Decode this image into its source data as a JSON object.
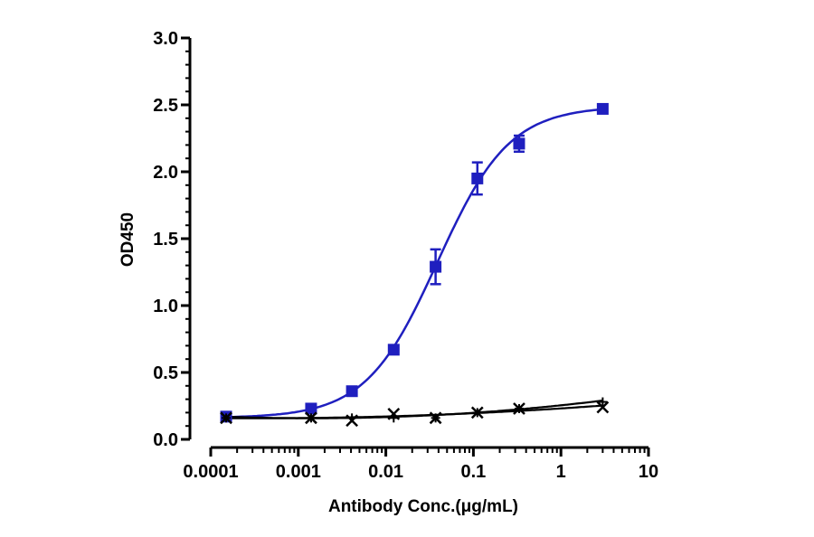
{
  "chart_data": {
    "type": "scatter",
    "title": "",
    "xlabel": "Antibody Conc.(μg/mL)",
    "ylabel": "OD450",
    "xscale": "log",
    "xlim": [
      0.0001,
      10
    ],
    "ylim": [
      0,
      3
    ],
    "xticks": [
      0.0001,
      0.001,
      0.01,
      0.1,
      1,
      10
    ],
    "xtick_labels": [
      "0.0001",
      "0.001",
      "0.01",
      "0.1",
      "1",
      "10"
    ],
    "yticks": [
      0,
      0.5,
      1.0,
      1.5,
      2.0,
      2.5,
      3.0
    ],
    "ytick_labels": [
      "0.0",
      "0.5",
      "1.0",
      "1.5",
      "2.0",
      "2.5",
      "3.0"
    ],
    "grid": false,
    "legend": "none",
    "series": [
      {
        "marker": "square",
        "color": "#1f1fbf",
        "fit": "4PL",
        "x": [
          0.00015,
          0.0014,
          0.0041,
          0.0123,
          0.037,
          0.111,
          0.333,
          3.0
        ],
        "y": [
          0.17,
          0.23,
          0.36,
          0.67,
          1.29,
          1.95,
          2.21,
          2.47
        ],
        "error": [
          0.02,
          0.02,
          0.02,
          0.03,
          0.13,
          0.12,
          0.06,
          0.03
        ]
      },
      {
        "marker": "cross",
        "color": "#000000",
        "fit": "line",
        "x": [
          0.00015,
          0.0014,
          0.0041,
          0.0123,
          0.037,
          0.111,
          0.333,
          3.0
        ],
        "y": [
          0.16,
          0.16,
          0.14,
          0.19,
          0.16,
          0.2,
          0.23,
          0.24
        ]
      },
      {
        "marker": "plus",
        "color": "#000000",
        "fit": "line",
        "x": [
          0.00015,
          0.0014,
          0.0041,
          0.0123,
          0.037,
          0.111,
          0.333,
          3.0
        ],
        "y": [
          0.16,
          0.16,
          0.16,
          0.16,
          0.16,
          0.2,
          0.23,
          0.28
        ]
      }
    ]
  }
}
